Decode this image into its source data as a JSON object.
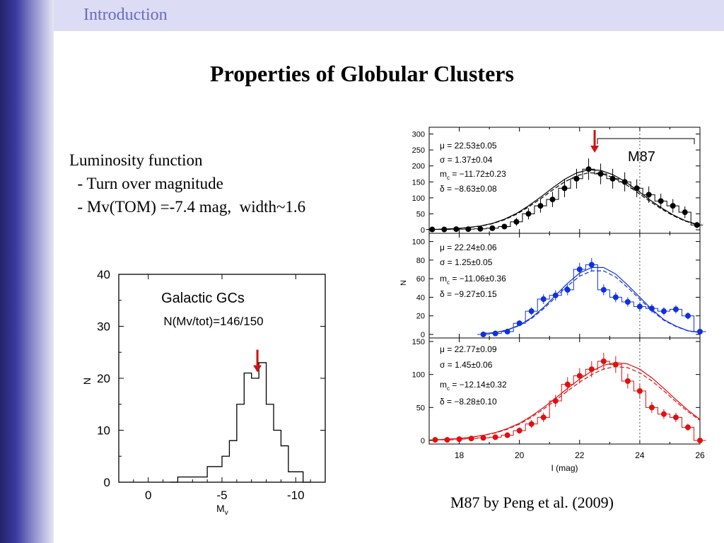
{
  "slide": {
    "section": "Introduction",
    "title": "Properties of  Globular Clusters",
    "bullets": [
      "Luminosity function",
      "  - Turn over magnitude",
      "  - Mv(TOM) =-7.4 mag,  width~1.6"
    ],
    "caption": "M87  by Peng et al. (2009)"
  },
  "chart_data": [
    {
      "type": "bar",
      "title": "Galactic GCs",
      "subtitle": "N(Mv/tot)=146/150",
      "xlabel": "M_v",
      "ylabel": "N",
      "xlim": [
        2,
        -12
      ],
      "ylim": [
        0,
        40
      ],
      "x_ticks": [
        0,
        -5,
        -10
      ],
      "y_ticks": [
        0,
        10,
        20,
        30,
        40
      ],
      "bin_edges": [
        -1.5,
        -2,
        -2.5,
        -3,
        -3.5,
        -4,
        -4.5,
        -5,
        -5.5,
        -6,
        -6.5,
        -7,
        -7.5,
        -8,
        -8.5,
        -9,
        -9.5,
        -10,
        -10.5,
        -11
      ],
      "values": [
        0,
        1,
        1,
        1,
        1,
        3,
        3,
        5,
        8,
        15,
        21,
        20,
        23,
        15,
        10,
        7,
        2,
        2,
        0
      ],
      "marker": {
        "label": "TOM",
        "x": -7.4
      }
    },
    {
      "type": "line",
      "title": "M87",
      "xlabel": "I (mag)",
      "ylabel": "N",
      "xlim": [
        17,
        26
      ],
      "x_ticks": [
        18,
        20,
        22,
        24,
        26
      ],
      "vline": 24,
      "marker": {
        "x": 22.5
      },
      "panels": [
        {
          "color": "#000000",
          "ylim": [
            0,
            310
          ],
          "y_ticks": [
            0,
            50,
            100,
            150,
            200,
            250,
            300
          ],
          "stats": [
            "μ  =  22.53±0.05",
            "σ  =   1.37±0.04",
            "m_c  =  −11.72±0.23",
            "δ  =  −8.63±0.08"
          ],
          "x": [
            17.1,
            17.5,
            17.9,
            18.3,
            18.7,
            19.1,
            19.5,
            19.9,
            20.3,
            20.7,
            21.1,
            21.5,
            21.9,
            22.3,
            22.7,
            23.1,
            23.5,
            23.9,
            24.3,
            24.7,
            25.1,
            25.5,
            25.9
          ],
          "values": [
            1,
            1,
            2,
            2,
            3,
            5,
            10,
            25,
            50,
            75,
            95,
            130,
            160,
            190,
            175,
            160,
            150,
            130,
            110,
            90,
            75,
            55,
            15
          ],
          "fit": [
            1,
            2,
            4,
            7,
            12,
            20,
            33,
            51,
            75,
            102,
            131,
            158,
            178,
            188,
            186,
            173,
            152,
            125,
            96,
            70,
            47,
            29,
            17
          ]
        },
        {
          "color": "#1030e0",
          "ylim": [
            0,
            105
          ],
          "y_ticks": [
            0,
            20,
            40,
            60,
            80,
            100
          ],
          "stats": [
            "μ  =  22.24±0.06",
            "σ  =   1.25±0.05",
            "m_c  =  −11.06±0.36",
            "δ  =  −9.27±0.15"
          ],
          "x": [
            18.8,
            19.2,
            19.6,
            20.0,
            20.4,
            20.8,
            21.2,
            21.6,
            22.0,
            22.4,
            22.8,
            23.2,
            23.6,
            24.0,
            24.4,
            24.8,
            25.2,
            25.6,
            26.0
          ],
          "values": [
            0,
            1,
            3,
            12,
            25,
            38,
            42,
            48,
            70,
            75,
            48,
            40,
            35,
            30,
            28,
            25,
            27,
            20,
            3
          ],
          "fit": [
            1,
            2,
            5,
            10,
            18,
            29,
            42,
            55,
            66,
            72,
            72,
            65,
            53,
            40,
            27,
            16,
            9,
            4,
            2
          ]
        },
        {
          "color": "#e01010",
          "ylim": [
            0,
            150
          ],
          "y_ticks": [
            0,
            50,
            100,
            150
          ],
          "stats": [
            "μ  =  22.77±0.09",
            "σ  =   1.45±0.06",
            "m_c  =  −12.14±0.32",
            "δ  =  −8.28±0.10"
          ],
          "x": [
            17.2,
            17.6,
            18.0,
            18.4,
            18.8,
            19.2,
            19.6,
            20.0,
            20.4,
            20.8,
            21.2,
            21.6,
            22.0,
            22.4,
            22.8,
            23.2,
            23.6,
            24.0,
            24.4,
            24.8,
            25.2,
            25.6,
            26.0
          ],
          "values": [
            1,
            1,
            2,
            3,
            4,
            5,
            8,
            15,
            25,
            35,
            60,
            85,
            98,
            108,
            120,
            115,
            90,
            75,
            50,
            40,
            35,
            20,
            0
          ],
          "fit": [
            1,
            2,
            3,
            5,
            8,
            12,
            18,
            26,
            37,
            50,
            64,
            79,
            93,
            105,
            114,
            118,
            116,
            108,
            95,
            79,
            62,
            46,
            32
          ]
        }
      ]
    }
  ]
}
